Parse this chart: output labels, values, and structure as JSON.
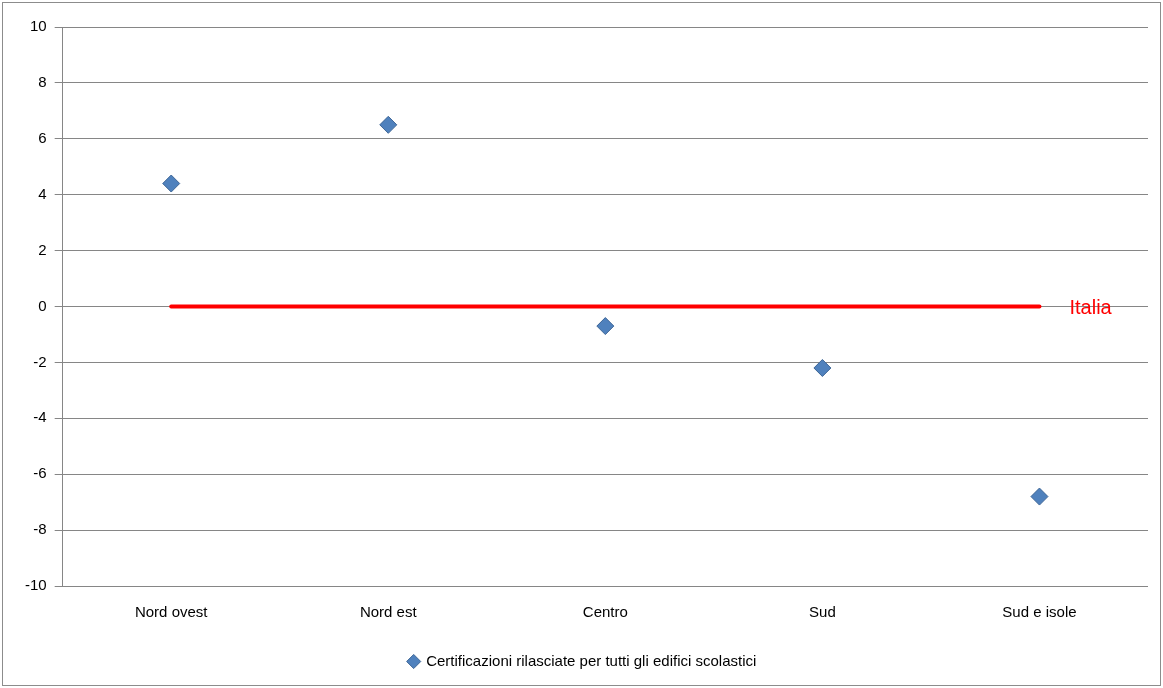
{
  "chart_data": {
    "type": "scatter",
    "categories": [
      "Nord ovest",
      "Nord est",
      "Centro",
      "Sud",
      "Sud e isole"
    ],
    "series": [
      {
        "name": "Certificazioni rilasciate per tutti gli edifici scolastici",
        "color": "#4f81bd",
        "values": [
          4.4,
          6.5,
          -0.7,
          -2.2,
          -6.8
        ]
      }
    ],
    "ylim": [
      -10,
      10
    ],
    "yticks": [
      -10,
      -8,
      -6,
      -4,
      -2,
      0,
      2,
      4,
      6,
      8,
      10
    ],
    "grid": "y",
    "legend": "bottom",
    "marker": "diamond",
    "ref_lines": [
      {
        "axis": "y",
        "value": 0,
        "label": "Italia",
        "color": "#ff0000"
      }
    ]
  }
}
